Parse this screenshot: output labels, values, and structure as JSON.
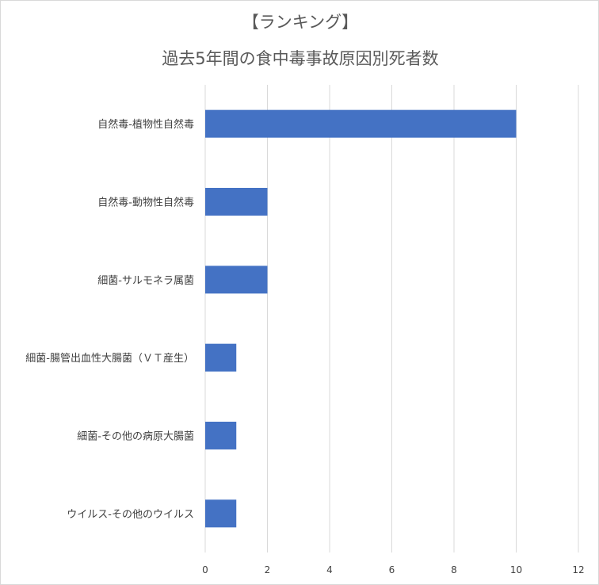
{
  "chart_data": {
    "type": "bar",
    "orientation": "horizontal",
    "title": [
      "【ランキング】",
      "過去5年間の食中毒事故原因別死者数"
    ],
    "categories": [
      "自然毒-植物性自然毒",
      "自然毒-動物性自然毒",
      "細菌-サルモネラ属菌",
      "細菌-腸管出血性大腸菌（ＶＴ産生）",
      "細菌-その他の病原大腸菌",
      "ウイルス-その他のウイルス"
    ],
    "values": [
      10,
      2,
      2,
      1,
      1,
      1
    ],
    "xlim": [
      0,
      12
    ],
    "xticks": [
      0,
      2,
      4,
      6,
      8,
      10,
      12
    ],
    "xlabel": "",
    "ylabel": "",
    "grid": "vertical",
    "legend": "none",
    "bar_color": "#4472c4",
    "grid_color": "#d9d9d9"
  }
}
